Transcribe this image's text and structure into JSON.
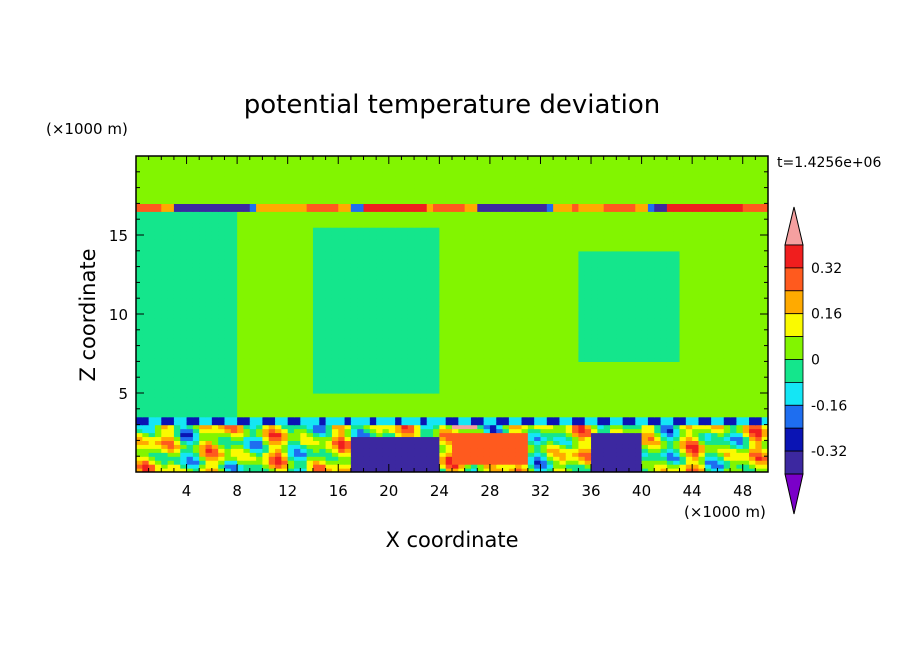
{
  "chart_data": {
    "type": "heatmap",
    "title": "potential temperature deviation",
    "xlabel": "X coordinate",
    "ylabel": "Z coordinate",
    "x_unit": "(×1000 m)",
    "y_unit": "(×1000 m)",
    "time_label": "t=1.4256e+06",
    "xlim": [
      0,
      50
    ],
    "ylim": [
      0,
      20
    ],
    "x_ticks": [
      4,
      8,
      12,
      16,
      20,
      24,
      28,
      32,
      36,
      40,
      44,
      48
    ],
    "y_ticks": [
      5,
      10,
      15
    ],
    "colorbar": {
      "labels": [
        "0.32",
        "0.16",
        "0",
        "-0.16",
        "-0.32"
      ],
      "label_values": [
        0.32,
        0.16,
        0,
        -0.16,
        -0.32
      ],
      "levels": [
        -0.4,
        -0.32,
        -0.24,
        -0.16,
        -0.08,
        0,
        0.08,
        0.16,
        0.24,
        0.32,
        0.4
      ],
      "colors": [
        "#7a00c8",
        "#3c28a0",
        "#0a14b4",
        "#1e6ef0",
        "#14e6f5",
        "#14e68c",
        "#82f500",
        "#fafa00",
        "#ffaa00",
        "#ff5a1e",
        "#f01e1e",
        "#f5a0a0"
      ],
      "extend": "both"
    },
    "regions": [
      {
        "x": [
          0,
          50
        ],
        "z": [
          3.5,
          16.4
        ],
        "value": 0.02,
        "note": "background mid-troposphere"
      },
      {
        "x": [
          0,
          8
        ],
        "z": [
          3.5,
          16.4
        ],
        "value": -0.03
      },
      {
        "x": [
          14,
          24
        ],
        "z": [
          5,
          15.5
        ],
        "value": -0.03
      },
      {
        "x": [
          35,
          43
        ],
        "z": [
          7,
          14
        ],
        "value": -0.03
      },
      {
        "x": [
          0,
          50
        ],
        "z": [
          17.2,
          20
        ],
        "value": 0.02
      },
      {
        "x": [
          0,
          50
        ],
        "z": [
          16.6,
          17.1
        ],
        "value": 0.24,
        "note": "tropopause band"
      },
      {
        "x": [
          0,
          50
        ],
        "z": [
          0,
          3.5
        ],
        "value": 0.1,
        "note": "boundary layer turbulence"
      }
    ]
  }
}
